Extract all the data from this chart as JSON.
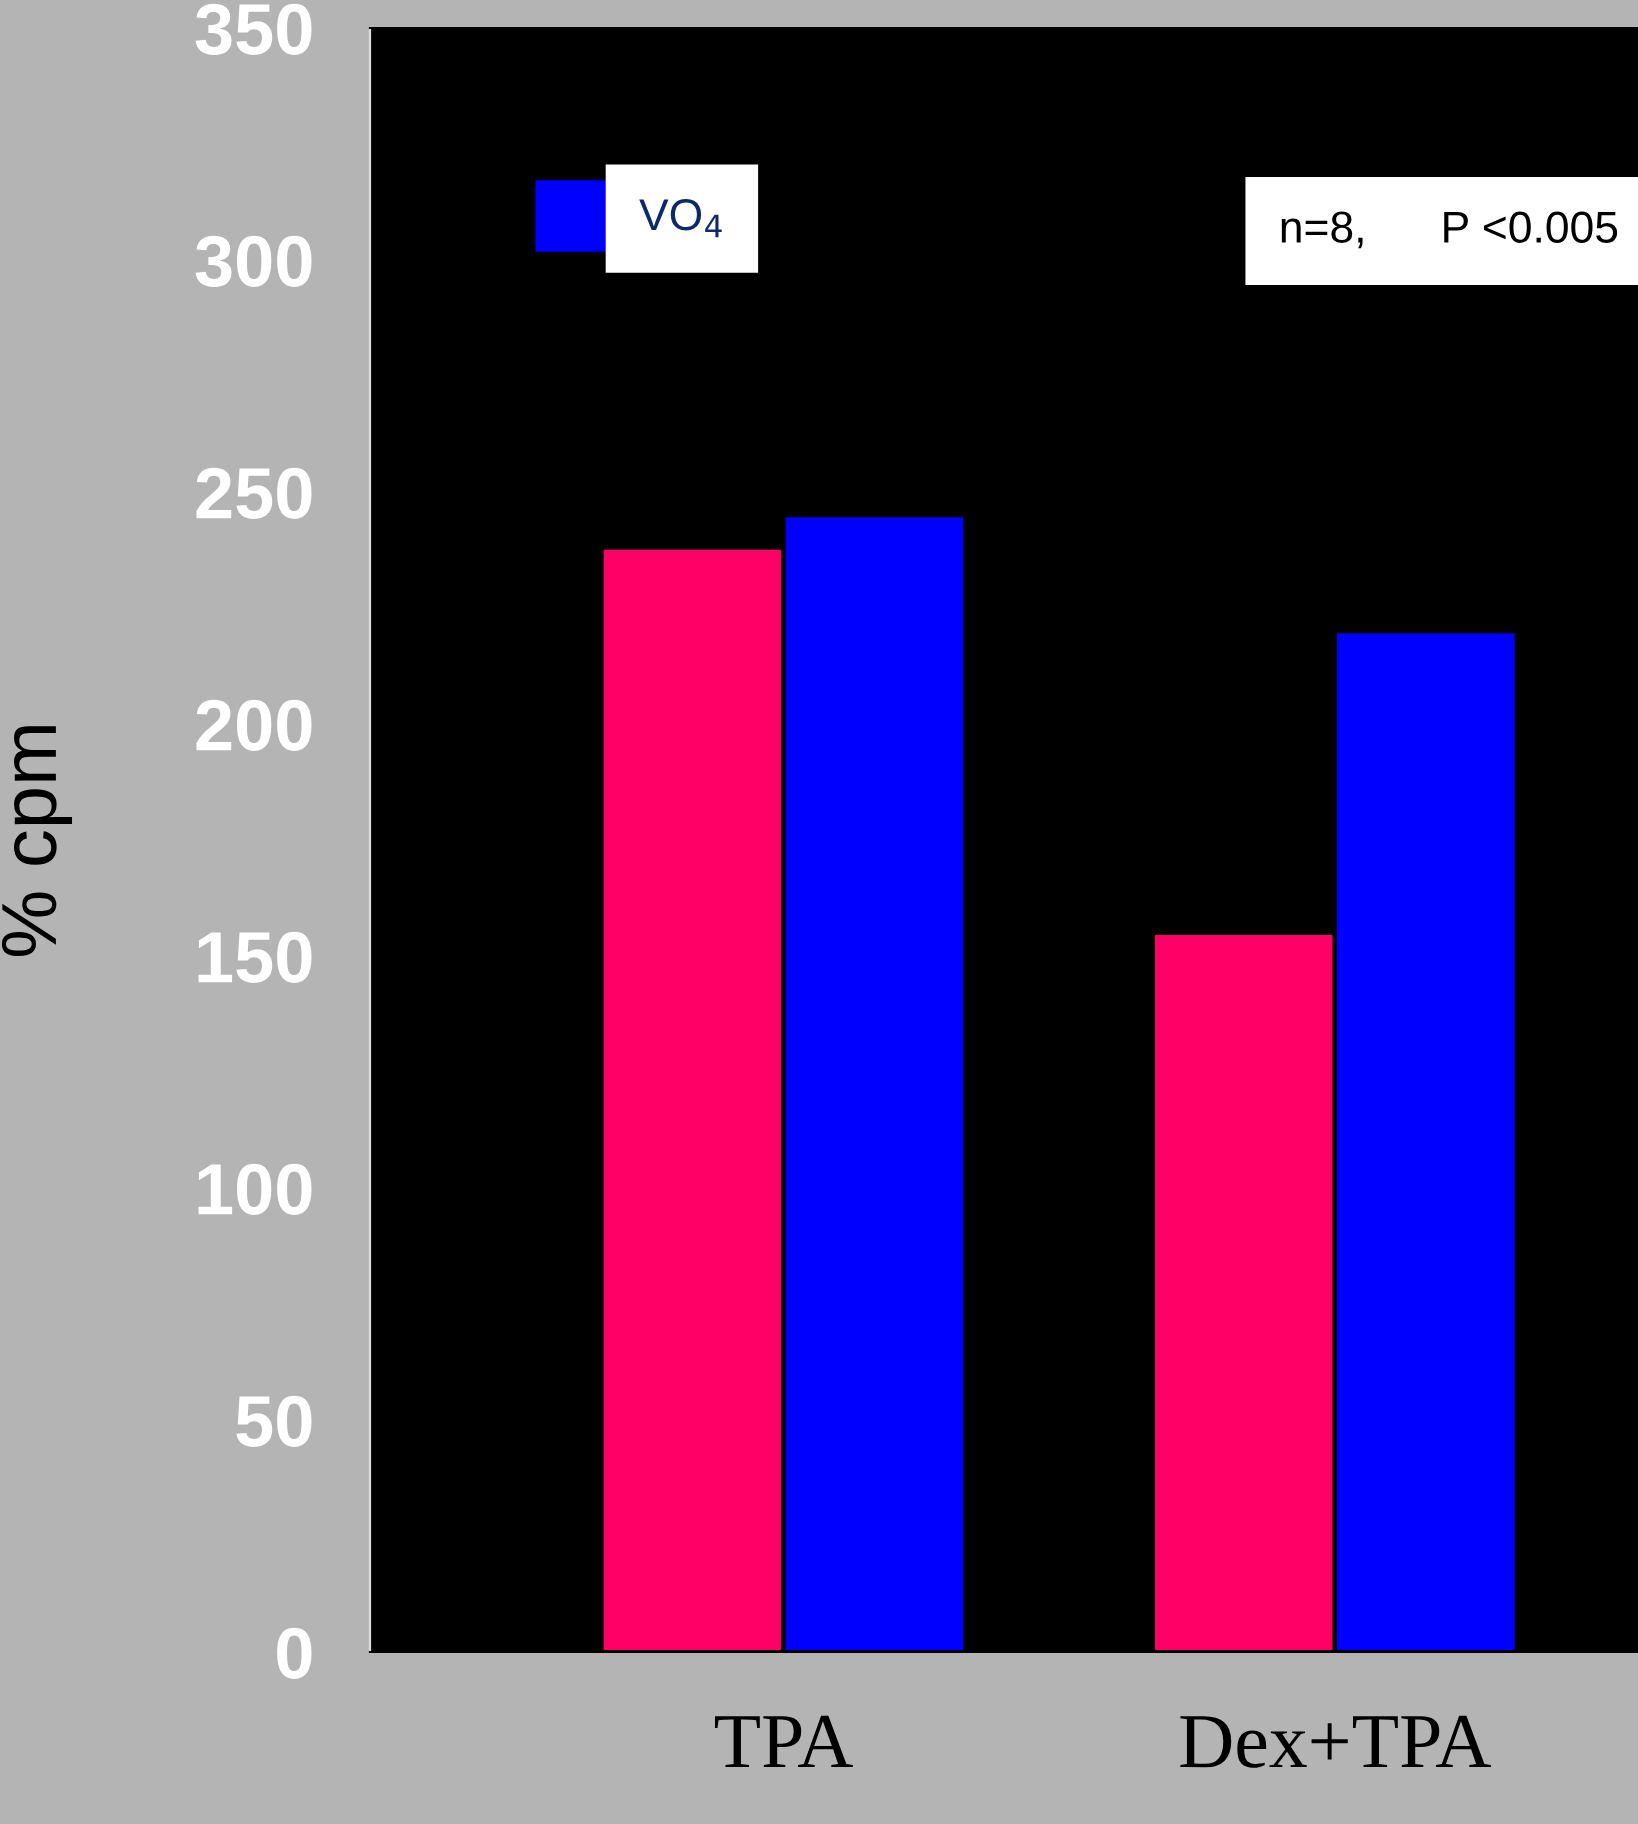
{
  "chart_data": {
    "type": "bar",
    "ylabel": "% cpm",
    "categories": [
      "TPA",
      "Dex+TPA"
    ],
    "series": [
      {
        "color": "#ff0066",
        "values": [
          238,
          155
        ]
      },
      {
        "name": "VO$_{4}$",
        "color": "#0000ff",
        "values": [
          245,
          220
        ]
      }
    ],
    "ylim": [
      0,
      350
    ],
    "yticks": [
      0,
      50,
      100,
      150,
      200,
      250,
      300,
      350
    ],
    "legend": "top left",
    "grid": false,
    "annotations": [
      "n=8,      P <0.005"
    ]
  }
}
